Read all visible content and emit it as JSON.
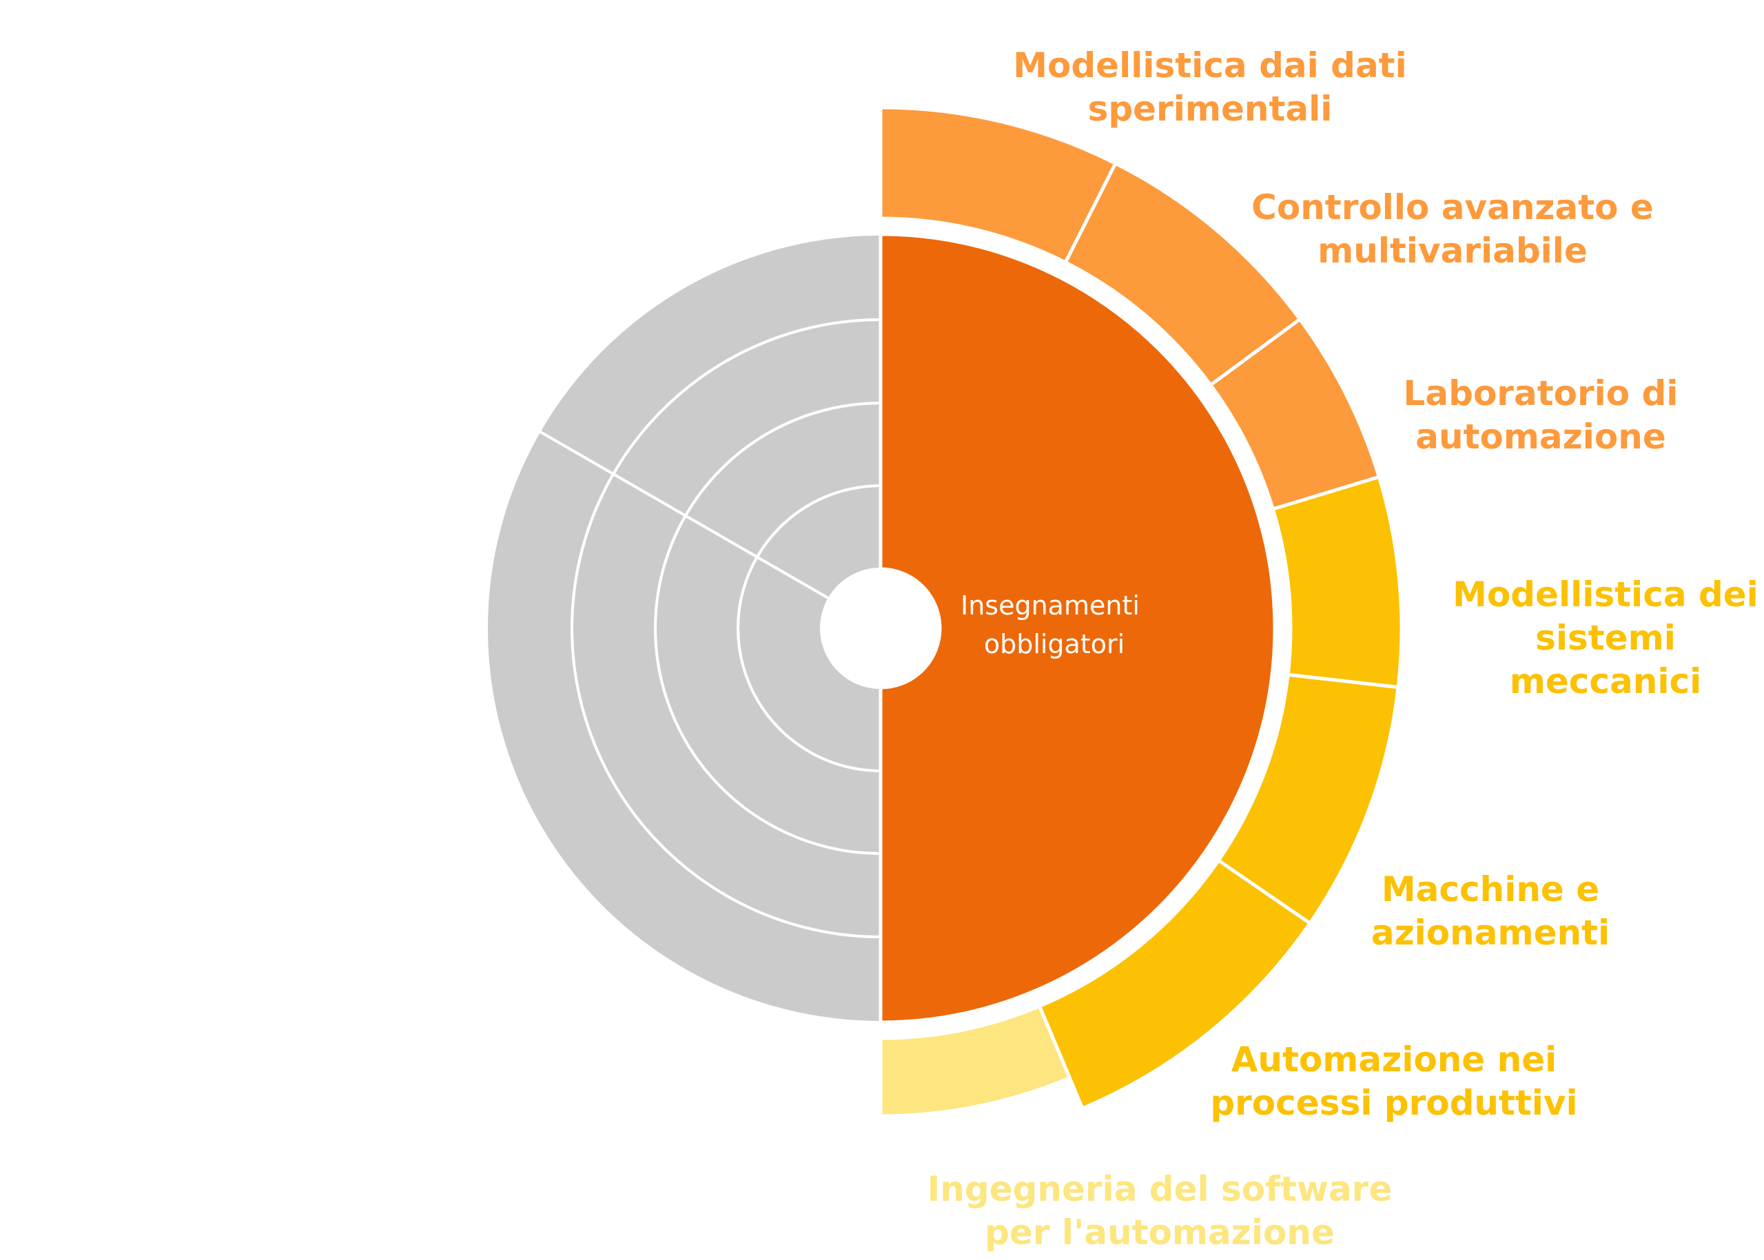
{
  "diagram": {
    "center_label": {
      "lines": [
        "Insegnamenti",
        "obbligatori"
      ]
    },
    "colors": {
      "core": "#ed6809",
      "grey_rings": "#cbcbcb",
      "separator": "#ffffff",
      "orange_outer": "#fd9a3c",
      "yellow_outer": "#fcc102",
      "pale_outer": "#fde680"
    },
    "outer_segments": [
      {
        "id": "modellistica-dati",
        "lines": [
          "Modellistica dai dati",
          "sperimentali"
        ],
        "color": "#fd9a3c",
        "label_color": "#fd9a3c"
      },
      {
        "id": "controllo-avanzato",
        "lines": [
          "Controllo avanzato e",
          "multivariabile"
        ],
        "color": "#fd9a3c",
        "label_color": "#fd9a3c"
      },
      {
        "id": "laboratorio-automazione",
        "lines": [
          "Laboratorio di",
          "automazione"
        ],
        "color": "#fd9a3c",
        "label_color": "#fd9a3c"
      },
      {
        "id": "modellistica-sistemi",
        "lines": [
          "Modellistica dei",
          "sistemi",
          "meccanici"
        ],
        "color": "#fcc102",
        "label_color": "#fcc102"
      },
      {
        "id": "macchine-azionamenti",
        "lines": [
          "Macchine e",
          "azionamenti"
        ],
        "color": "#fcc102",
        "label_color": "#fcc102"
      },
      {
        "id": "automazione-processi",
        "lines": [
          "Automazione nei",
          "processi produttivi"
        ],
        "color": "#fcc102",
        "label_color": "#fcc102"
      },
      {
        "id": "ingegneria-software",
        "lines": [
          "Ingegneria del software",
          "per l'automazione"
        ],
        "color": "#fde680",
        "label_color": "#fde680"
      }
    ]
  }
}
